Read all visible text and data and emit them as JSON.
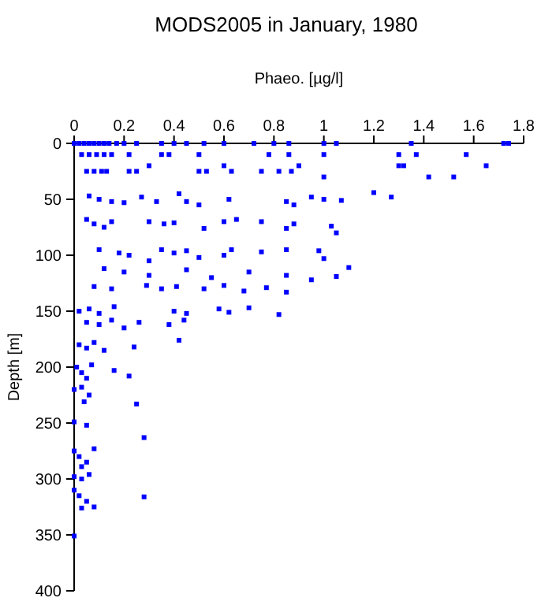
{
  "chart_data": {
    "type": "scatter",
    "title": "MODS2005 in January, 1980",
    "xlabel": "Phaeo. [µg/l]",
    "ylabel": "Depth [m]",
    "xlim": [
      0,
      1.8
    ],
    "xticks": [
      0,
      0.2,
      0.4,
      0.6,
      0.8,
      1,
      1.2,
      1.4,
      1.6,
      1.8
    ],
    "ylim": [
      400,
      0
    ],
    "yticks": [
      0,
      50,
      100,
      150,
      200,
      250,
      300,
      350,
      400
    ],
    "grid": false,
    "marker": "square",
    "series": [
      {
        "color": "#0000ff",
        "x": [
          0,
          0.02,
          0.04,
          0.06,
          0.08,
          0.1,
          0.12,
          0.14,
          0.17,
          0.2,
          0.25,
          0.35,
          0.4,
          0.45,
          0.52,
          0.6,
          0.72,
          0.8,
          0.86,
          1.0,
          1.05,
          1.35,
          1.72,
          1.74,
          0.03,
          0.06,
          0.09,
          0.12,
          0.15,
          0.22,
          0.35,
          0.38,
          0.5,
          0.78,
          0.86,
          1.0,
          1.3,
          1.37,
          1.57,
          0.9,
          1.3,
          1.32,
          1.65,
          0.3,
          0.6,
          0.05,
          0.08,
          0.11,
          0.13,
          0.22,
          0.25,
          0.5,
          0.53,
          0.63,
          0.75,
          0.82,
          0.87,
          1.0,
          1.42,
          1.52,
          0.06,
          0.1,
          0.15,
          0.2,
          0.27,
          0.33,
          0.42,
          0.45,
          0.5,
          0.62,
          0.85,
          0.88,
          0.95,
          1.0,
          1.07,
          1.2,
          1.27,
          0.05,
          0.08,
          0.12,
          0.15,
          0.3,
          0.36,
          0.4,
          0.52,
          0.6,
          0.65,
          0.75,
          0.88,
          0.85,
          1.03,
          1.05,
          0.1,
          0.18,
          0.22,
          0.35,
          0.4,
          0.45,
          0.6,
          0.63,
          0.75,
          0.85,
          0.98,
          1.0,
          0.3,
          0.5,
          1.1,
          1.05,
          0.12,
          0.2,
          0.3,
          0.45,
          0.55,
          0.7,
          0.85,
          0.95,
          0.29,
          0.35,
          0.41,
          0.52,
          0.6,
          0.68,
          0.77,
          0.85,
          0.15,
          0.08,
          0.02,
          0.06,
          0.1,
          0.16,
          0.4,
          0.45,
          0.58,
          0.62,
          0.7,
          0.82,
          0.05,
          0.1,
          0.15,
          0.2,
          0.26,
          0.38,
          0.44,
          0.02,
          0.05,
          0.08,
          0.12,
          0.24,
          0.42,
          0.01,
          0.03,
          0.05,
          0.07,
          0.16,
          0.22,
          0,
          0.03,
          0.06,
          0.04,
          0.25,
          0,
          0.05,
          0.28,
          0,
          0.02,
          0.05,
          0.08,
          0.03,
          0,
          0.03,
          0.06,
          0,
          0.02,
          0.05,
          0.08,
          0.03,
          0.28,
          0
        ],
        "values": [
          0,
          0,
          0,
          0,
          0,
          0,
          0,
          0,
          0,
          0,
          0,
          0,
          0,
          0,
          0,
          0,
          0,
          0,
          0,
          0,
          0,
          0,
          0,
          0,
          10,
          10,
          10,
          10,
          10,
          10,
          10,
          10,
          10,
          10,
          10,
          10,
          10,
          10,
          10,
          20,
          20,
          20,
          20,
          20,
          20,
          25,
          25,
          25,
          25,
          25,
          25,
          25,
          25,
          25,
          25,
          25,
          25,
          30,
          30,
          30,
          47,
          50,
          52,
          53,
          48,
          52,
          45,
          52,
          55,
          50,
          52,
          55,
          48,
          50,
          51,
          44,
          48,
          68,
          72,
          75,
          70,
          70,
          72,
          71,
          76,
          70,
          68,
          70,
          72,
          76,
          74,
          80,
          95,
          98,
          100,
          95,
          98,
          96,
          100,
          95,
          97,
          95,
          96,
          103,
          105,
          102,
          111,
          119,
          112,
          115,
          118,
          113,
          120,
          115,
          118,
          122,
          127,
          130,
          128,
          130,
          127,
          132,
          129,
          133,
          130,
          128,
          150,
          148,
          152,
          146,
          150,
          152,
          148,
          151,
          147,
          153,
          160,
          162,
          158,
          165,
          160,
          162,
          158,
          180,
          183,
          178,
          185,
          182,
          176,
          200,
          205,
          210,
          198,
          203,
          208,
          220,
          218,
          225,
          231,
          233,
          249,
          252,
          263,
          275,
          280,
          285,
          273,
          289,
          298,
          300,
          296,
          310,
          315,
          320,
          325,
          326,
          316,
          351
        ]
      }
    ]
  }
}
